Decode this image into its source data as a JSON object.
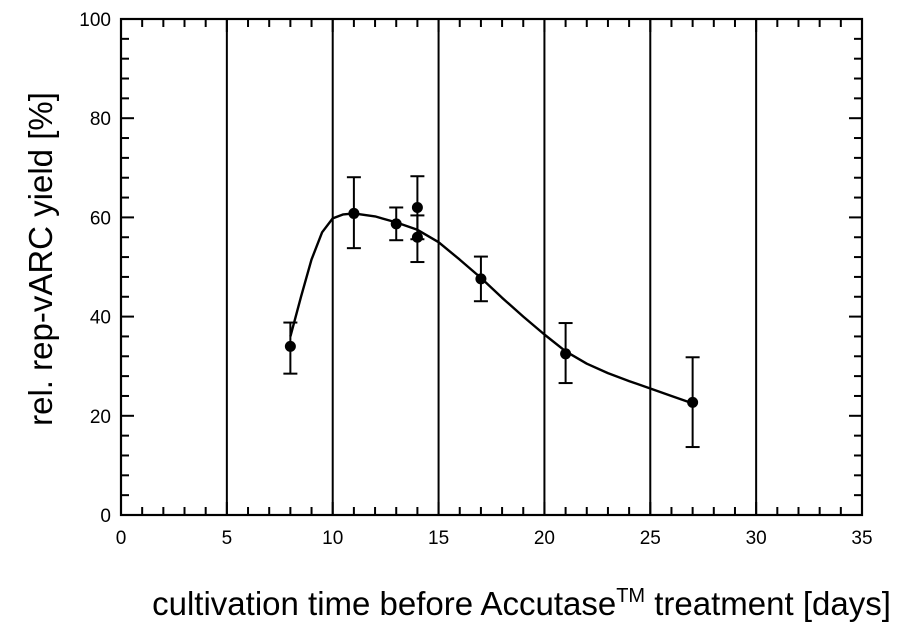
{
  "chart_data": {
    "type": "scatter",
    "title": "",
    "xlabel": "cultivation time before Accutase",
    "xlabel_superscript": "TM",
    "xlabel_suffix": " treatment [days]",
    "ylabel": "rel. rep-vARC yield [%]",
    "xlim": [
      0,
      35
    ],
    "ylim": [
      0,
      100
    ],
    "x_ticks": [
      0,
      5,
      10,
      15,
      20,
      25,
      30,
      35
    ],
    "y_ticks": [
      0,
      20,
      40,
      60,
      80,
      100
    ],
    "x_tick_labels": [
      "0",
      "5",
      "10",
      "15",
      "20",
      "25",
      "30",
      "35"
    ],
    "y_tick_labels": [
      "0",
      "20",
      "40",
      "60",
      "80",
      "100"
    ],
    "vertical_gridlines": [
      5,
      10,
      15,
      20,
      25,
      30
    ],
    "horizontal_grid": false,
    "legend": "none",
    "colors": {
      "axis": "#000000",
      "marker": "#000000",
      "curve": "#000000"
    },
    "points": [
      {
        "x": 8,
        "y": 34,
        "y_low": 28.5,
        "y_high": 38.8
      },
      {
        "x": 11,
        "y": 60.8,
        "y_low": 53.8,
        "y_high": 68.1
      },
      {
        "x": 13,
        "y": 58.7,
        "y_low": 55.4,
        "y_high": 62.0
      },
      {
        "x": 14,
        "y": 62.0,
        "y_low": 55.6,
        "y_high": 68.3
      },
      {
        "x": 14,
        "y": 56.0,
        "y_low": 51.0,
        "y_high": 60.4
      },
      {
        "x": 17,
        "y": 47.6,
        "y_low": 43.1,
        "y_high": 52.1
      },
      {
        "x": 21,
        "y": 32.5,
        "y_low": 26.6,
        "y_high": 38.7
      },
      {
        "x": 27,
        "y": 22.7,
        "y_low": 13.7,
        "y_high": 31.8
      }
    ],
    "fit_curve": {
      "x": [
        8,
        8.5,
        9,
        9.5,
        10,
        10.5,
        11,
        12,
        13,
        14,
        15,
        16,
        17,
        18,
        19,
        20,
        21,
        22,
        23,
        24,
        25,
        26,
        27
      ],
      "y": [
        36,
        44,
        51.5,
        57,
        59.8,
        60.6,
        60.8,
        60.2,
        59,
        57.5,
        55,
        51.5,
        47.8,
        43.8,
        40,
        36.4,
        33,
        30.5,
        28.6,
        27,
        25.5,
        24,
        22.5
      ]
    }
  }
}
